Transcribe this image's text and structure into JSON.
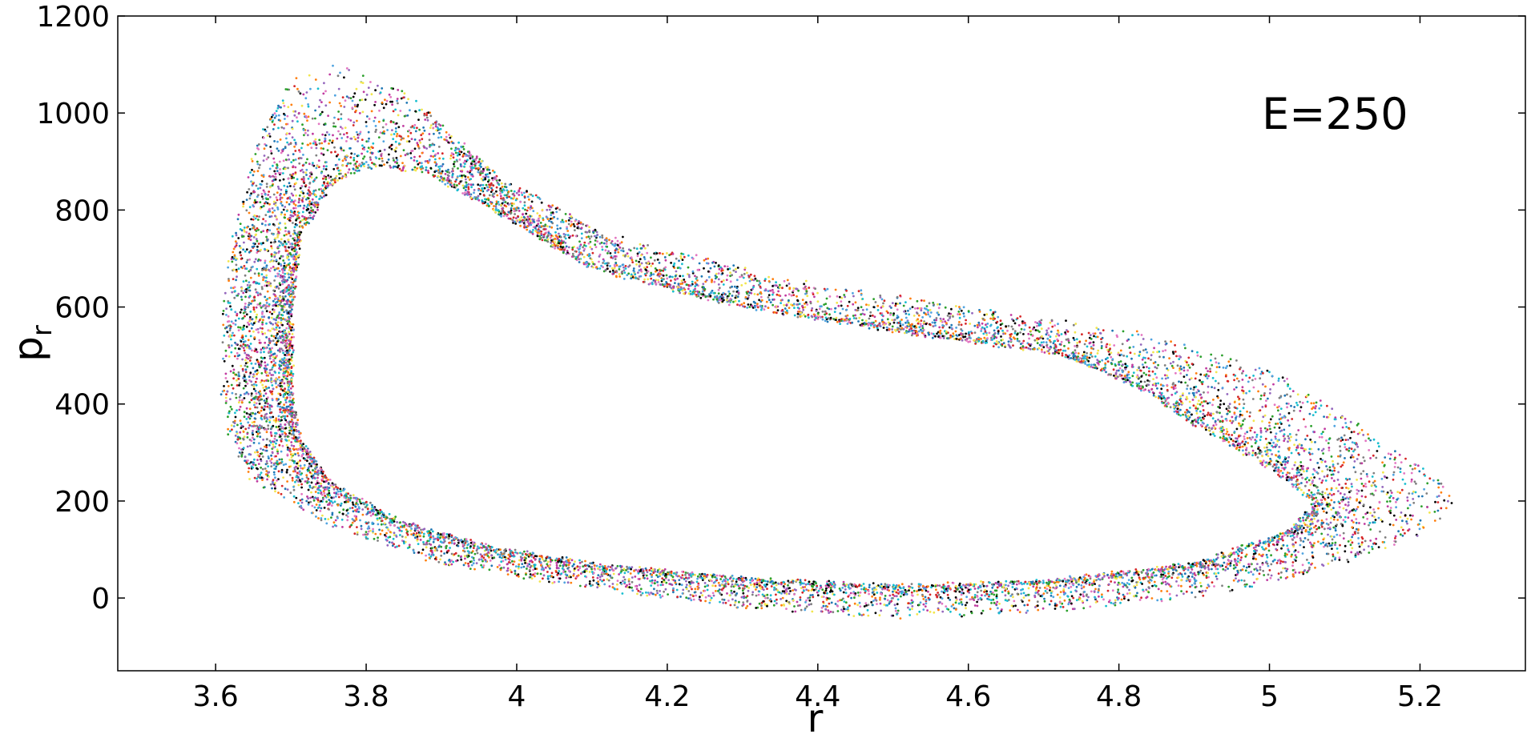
{
  "chart_data": {
    "type": "scatter",
    "title": "",
    "xlabel": "r",
    "ylabel": "p",
    "ylabel_subscript": "r",
    "annotation": "E=250",
    "xlim": [
      3.47,
      5.34
    ],
    "ylim": [
      -150,
      1200
    ],
    "xticks": [
      3.6,
      3.8,
      4.0,
      4.2,
      4.4,
      4.6,
      4.8,
      5.0,
      5.2
    ],
    "xtick_labels": [
      "3.6",
      "3.8",
      "4",
      "4.2",
      "4.4",
      "4.6",
      "4.8",
      "5",
      "5.2"
    ],
    "yticks": [
      0,
      200,
      400,
      600,
      800,
      1000,
      1200
    ],
    "ytick_labels": [
      "0",
      "200",
      "400",
      "600",
      "800",
      "1000",
      "1200"
    ],
    "grid": false,
    "legend": "none",
    "series_colors": [
      "#000000",
      "#1f77b4",
      "#2ca02c",
      "#d62728",
      "#9467bd",
      "#17becf",
      "#e377c2",
      "#ff7f0e",
      "#f2e64d",
      "#808080",
      "#4fa3e0",
      "#c03aa0"
    ],
    "orbit_inner": [
      [
        3.7,
        420
      ],
      [
        3.71,
        330
      ],
      [
        3.75,
        240
      ],
      [
        3.84,
        160
      ],
      [
        3.95,
        110
      ],
      [
        4.1,
        70
      ],
      [
        4.3,
        40
      ],
      [
        4.5,
        25
      ],
      [
        4.7,
        35
      ],
      [
        4.9,
        70
      ],
      [
        5.03,
        140
      ],
      [
        5.06,
        200
      ],
      [
        5.0,
        270
      ],
      [
        4.9,
        360
      ],
      [
        4.82,
        440
      ],
      [
        4.72,
        505
      ],
      [
        4.55,
        540
      ],
      [
        4.3,
        600
      ],
      [
        4.1,
        680
      ],
      [
        3.98,
        790
      ],
      [
        3.88,
        880
      ],
      [
        3.8,
        890
      ],
      [
        3.75,
        850
      ],
      [
        3.71,
        740
      ],
      [
        3.7,
        600
      ],
      [
        3.7,
        420
      ]
    ],
    "orbit_outer": [
      [
        3.61,
        420
      ],
      [
        3.62,
        330
      ],
      [
        3.65,
        240
      ],
      [
        3.75,
        150
      ],
      [
        3.9,
        70
      ],
      [
        4.1,
        20
      ],
      [
        4.3,
        -20
      ],
      [
        4.5,
        -40
      ],
      [
        4.7,
        -30
      ],
      [
        4.9,
        0
      ],
      [
        5.08,
        60
      ],
      [
        5.2,
        130
      ],
      [
        5.25,
        190
      ],
      [
        5.22,
        260
      ],
      [
        5.12,
        360
      ],
      [
        5.0,
        470
      ],
      [
        4.85,
        540
      ],
      [
        4.6,
        600
      ],
      [
        4.35,
        660
      ],
      [
        4.1,
        760
      ],
      [
        3.95,
        900
      ],
      [
        3.85,
        1050
      ],
      [
        3.77,
        1105
      ],
      [
        3.7,
        1070
      ],
      [
        3.66,
        960
      ],
      [
        3.63,
        800
      ],
      [
        3.61,
        600
      ],
      [
        3.61,
        420
      ]
    ]
  }
}
